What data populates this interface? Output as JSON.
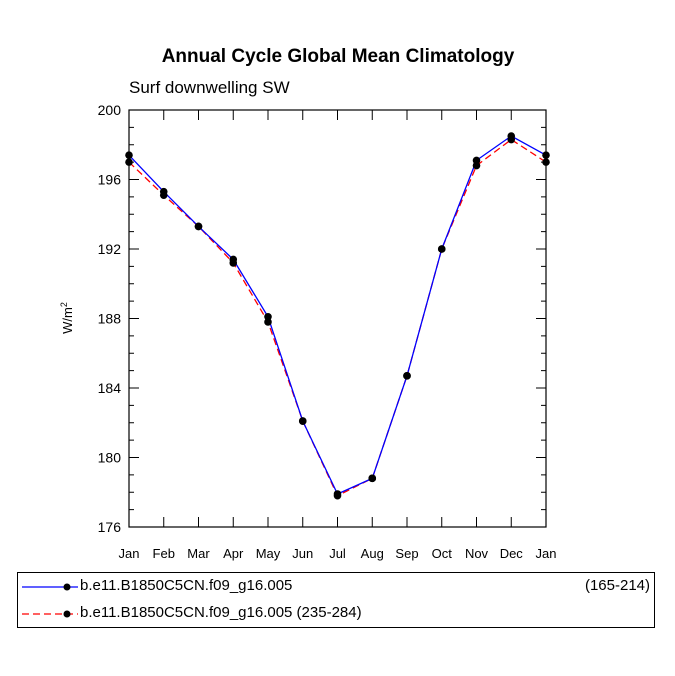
{
  "chart_data": {
    "type": "line",
    "title": "Annual Cycle Global Mean Climatology",
    "subtitle": "Surf downwelling SW",
    "xlabel": "",
    "ylabel": "W/m",
    "ylabel_superscript": "2",
    "ylim": [
      176,
      200
    ],
    "yticks": [
      176,
      180,
      184,
      188,
      192,
      196,
      200
    ],
    "categories": [
      "Jan",
      "Feb",
      "Mar",
      "Apr",
      "May",
      "Jun",
      "Jul",
      "Aug",
      "Sep",
      "Oct",
      "Nov",
      "Dec",
      "Jan"
    ],
    "series": [
      {
        "name": "b.e11.B1850C5CN.f09_g16.005",
        "range_label": "(165-214)",
        "color": "#0000ff",
        "dash": "solid",
        "values": [
          197.4,
          195.3,
          193.3,
          191.4,
          188.1,
          182.1,
          177.9,
          178.8,
          184.7,
          192.0,
          197.1,
          198.5,
          197.4
        ]
      },
      {
        "name": "b.e11.B1850C5CN.f09_g16.005 (235-284)",
        "range_label": "",
        "color": "#ff0000",
        "dash": "dashed",
        "values": [
          197.0,
          195.1,
          193.3,
          191.2,
          187.8,
          182.1,
          177.8,
          178.8,
          184.7,
          192.0,
          196.8,
          198.3,
          197.0
        ]
      }
    ]
  }
}
